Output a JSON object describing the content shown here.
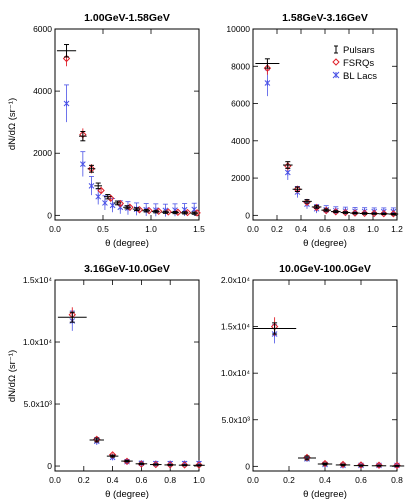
{
  "figure": {
    "y_label": "dN/dΩ (sr⁻¹)",
    "x_label": "θ (degree)"
  },
  "colors": {
    "pulsars": "#000000",
    "fsrqs": "#e0202a",
    "bllacs": "#4a52e6",
    "axes": "#000000"
  },
  "legend": {
    "placement": "top-right of panel 2",
    "entries": [
      {
        "name": "Pulsars",
        "marker": "I"
      },
      {
        "name": "FSRQs",
        "marker": "◇"
      },
      {
        "name": "BL Lacs",
        "marker": "✳"
      }
    ]
  },
  "chart_data": [
    {
      "type": "scatter",
      "title": "1.00GeV-1.58GeV",
      "xlabel": "θ (degree)",
      "ylabel": "dN/dΩ (sr⁻¹)",
      "xlim": [
        0,
        1.5
      ],
      "ylim": [
        -150,
        6000
      ],
      "x_ticks": [
        {
          "v": 0,
          "t": "0.0"
        },
        {
          "v": 0.5,
          "t": "0.5"
        },
        {
          "v": 1.0,
          "t": "1.0"
        },
        {
          "v": 1.5,
          "t": "1.5"
        }
      ],
      "y_ticks": [
        {
          "v": 0,
          "t": "0"
        },
        {
          "v": 2000,
          "t": "2000"
        },
        {
          "v": 4000,
          "t": "4000"
        },
        {
          "v": 6000,
          "t": "6000"
        }
      ],
      "series": [
        {
          "name": "Pulsars",
          "x": [
            0.12,
            0.29,
            0.38,
            0.45,
            0.55,
            0.65,
            0.75,
            0.85,
            0.95,
            1.05,
            1.15,
            1.25,
            1.35,
            1.45
          ],
          "y": [
            5300,
            2550,
            1500,
            950,
            600,
            400,
            260,
            200,
            150,
            120,
            100,
            90,
            80,
            70
          ],
          "xerr": [
            0.1,
            0.04,
            0.04,
            0.04,
            0.04,
            0.04,
            0.04,
            0.04,
            0.04,
            0.04,
            0.04,
            0.04,
            0.04,
            0.04
          ],
          "yerr": [
            200,
            150,
            110,
            90,
            70,
            60,
            50,
            45,
            40,
            40,
            35,
            35,
            35,
            35
          ]
        },
        {
          "name": "FSRQs",
          "x": [
            0.12,
            0.29,
            0.38,
            0.48,
            0.58,
            0.68,
            0.78,
            0.88,
            0.98,
            1.08,
            1.18,
            1.28,
            1.38,
            1.48
          ],
          "y": [
            5050,
            2600,
            1500,
            800,
            550,
            380,
            260,
            180,
            150,
            130,
            110,
            100,
            90,
            80
          ],
          "yerr": [
            250,
            200,
            150,
            100,
            80,
            70,
            60,
            55,
            50,
            50,
            45,
            45,
            45,
            45
          ]
        },
        {
          "name": "BL Lacs",
          "x": [
            0.12,
            0.29,
            0.38,
            0.45,
            0.52,
            0.6,
            0.68,
            0.76,
            0.85,
            0.95,
            1.05,
            1.15,
            1.25,
            1.35,
            1.45
          ],
          "y": [
            3600,
            1650,
            950,
            600,
            400,
            320,
            260,
            230,
            200,
            180,
            170,
            160,
            170,
            180,
            190
          ],
          "yerr": [
            600,
            400,
            300,
            250,
            230,
            220,
            210,
            210,
            200,
            200,
            200,
            200,
            200,
            200,
            200
          ]
        }
      ]
    },
    {
      "type": "scatter",
      "title": "1.58GeV-3.16GeV",
      "xlabel": "θ (degree)",
      "ylabel": "",
      "xlim": [
        0,
        1.2
      ],
      "ylim": [
        -250,
        10000
      ],
      "x_ticks": [
        {
          "v": 0,
          "t": "0.0"
        },
        {
          "v": 0.2,
          "t": "0.2"
        },
        {
          "v": 0.4,
          "t": "0.4"
        },
        {
          "v": 0.6,
          "t": "0.6"
        },
        {
          "v": 0.8,
          "t": "0.8"
        },
        {
          "v": 1.0,
          "t": "1.0"
        },
        {
          "v": 1.2,
          "t": "1.2"
        }
      ],
      "y_ticks": [
        {
          "v": 0,
          "t": "0"
        },
        {
          "v": 2000,
          "t": "2000"
        },
        {
          "v": 4000,
          "t": "4000"
        },
        {
          "v": 6000,
          "t": "6000"
        },
        {
          "v": 8000,
          "t": "8000"
        },
        {
          "v": 10000,
          "t": "10000"
        }
      ],
      "series": [
        {
          "name": "Pulsars",
          "x": [
            0.12,
            0.29,
            0.37,
            0.45,
            0.53,
            0.61,
            0.69,
            0.77,
            0.85,
            0.93,
            1.01,
            1.09,
            1.17
          ],
          "y": [
            8150,
            2700,
            1400,
            750,
            450,
            280,
            200,
            150,
            120,
            100,
            90,
            80,
            70
          ],
          "xerr": [
            0.1,
            0.04,
            0.04,
            0.04,
            0.04,
            0.04,
            0.04,
            0.04,
            0.04,
            0.04,
            0.04,
            0.04,
            0.04
          ],
          "yerr": [
            250,
            180,
            120,
            90,
            70,
            60,
            50,
            45,
            40,
            40,
            35,
            35,
            35
          ]
        },
        {
          "name": "FSRQs",
          "x": [
            0.12,
            0.29,
            0.37,
            0.45,
            0.53,
            0.61,
            0.69,
            0.77,
            0.85,
            0.93,
            1.01,
            1.09,
            1.17
          ],
          "y": [
            7900,
            2650,
            1400,
            700,
            420,
            260,
            190,
            150,
            120,
            110,
            100,
            90,
            80
          ],
          "yerr": [
            350,
            250,
            170,
            120,
            90,
            80,
            70,
            65,
            60,
            60,
            55,
            55,
            55
          ]
        },
        {
          "name": "BL Lacs",
          "x": [
            0.12,
            0.29,
            0.37,
            0.45,
            0.53,
            0.61,
            0.69,
            0.77,
            0.85,
            0.93,
            1.01,
            1.09,
            1.17
          ],
          "y": [
            7100,
            2300,
            1250,
            600,
            350,
            300,
            250,
            230,
            220,
            210,
            200,
            200,
            200
          ],
          "yerr": [
            700,
            400,
            300,
            250,
            230,
            220,
            210,
            210,
            200,
            200,
            200,
            200,
            200
          ]
        }
      ]
    },
    {
      "type": "scatter",
      "title": "3.16GeV-10.0GeV",
      "xlabel": "θ (degree)",
      "ylabel": "dN/dΩ (sr⁻¹)",
      "xlim": [
        0,
        1.0
      ],
      "ylim": [
        -400,
        15000
      ],
      "x_ticks": [
        {
          "v": 0,
          "t": "0.0"
        },
        {
          "v": 0.2,
          "t": "0.2"
        },
        {
          "v": 0.4,
          "t": "0.4"
        },
        {
          "v": 0.6,
          "t": "0.6"
        },
        {
          "v": 0.8,
          "t": "0.8"
        },
        {
          "v": 1.0,
          "t": "1.0"
        }
      ],
      "y_ticks": [
        {
          "v": 0,
          "t": "0"
        },
        {
          "v": 5000,
          "t": "5.0x10³"
        },
        {
          "v": 10000,
          "t": "1.0x10⁴"
        },
        {
          "v": 15000,
          "t": "1.5x10⁴"
        }
      ],
      "series": [
        {
          "name": "Pulsars",
          "x": [
            0.12,
            0.29,
            0.4,
            0.5,
            0.6,
            0.7,
            0.8,
            0.9,
            1.0
          ],
          "y": [
            12000,
            2100,
            800,
            400,
            180,
            120,
            90,
            70,
            60
          ],
          "xerr": [
            0.1,
            0.05,
            0.04,
            0.04,
            0.04,
            0.04,
            0.04,
            0.04,
            0.04
          ],
          "yerr": [
            400,
            150,
            80,
            60,
            50,
            45,
            40,
            40,
            40
          ]
        },
        {
          "name": "FSRQs",
          "x": [
            0.12,
            0.29,
            0.4,
            0.5,
            0.6,
            0.7,
            0.8,
            0.9,
            1.0
          ],
          "y": [
            12200,
            2150,
            900,
            380,
            160,
            120,
            100,
            90,
            80
          ],
          "yerr": [
            600,
            200,
            120,
            90,
            80,
            70,
            70,
            70,
            70
          ]
        },
        {
          "name": "BL Lacs",
          "x": [
            0.12,
            0.29,
            0.4,
            0.5,
            0.6,
            0.7,
            0.8,
            0.9,
            1.0
          ],
          "y": [
            11700,
            2000,
            700,
            350,
            220,
            200,
            200,
            200,
            200
          ],
          "yerr": [
            800,
            300,
            200,
            180,
            170,
            170,
            170,
            170,
            170
          ]
        }
      ]
    },
    {
      "type": "scatter",
      "title": "10.0GeV-100.0GeV",
      "xlabel": "θ (degree)",
      "ylabel": "",
      "xlim": [
        0,
        0.8
      ],
      "ylim": [
        -500,
        20000
      ],
      "x_ticks": [
        {
          "v": 0,
          "t": "0.0"
        },
        {
          "v": 0.2,
          "t": "0.2"
        },
        {
          "v": 0.4,
          "t": "0.4"
        },
        {
          "v": 0.6,
          "t": "0.6"
        },
        {
          "v": 0.8,
          "t": "0.8"
        }
      ],
      "y_ticks": [
        {
          "v": 0,
          "t": "0"
        },
        {
          "v": 5000,
          "t": "5.0x10³"
        },
        {
          "v": 10000,
          "t": "1.0x10⁴"
        },
        {
          "v": 15000,
          "t": "1.5x10⁴"
        },
        {
          "v": 20000,
          "t": "2.0x10⁴"
        }
      ],
      "series": [
        {
          "name": "Pulsars",
          "x": [
            0.12,
            0.3,
            0.4,
            0.5,
            0.6,
            0.7,
            0.8
          ],
          "y": [
            14800,
            900,
            250,
            150,
            80,
            60,
            40
          ],
          "xerr": [
            0.12,
            0.05,
            0.04,
            0.04,
            0.04,
            0.04,
            0.04
          ],
          "yerr": [
            600,
            200,
            100,
            80,
            60,
            50,
            50
          ]
        },
        {
          "name": "FSRQs",
          "x": [
            0.12,
            0.3,
            0.4,
            0.5,
            0.6,
            0.7,
            0.8
          ],
          "y": [
            15000,
            950,
            300,
            200,
            150,
            120,
            100
          ],
          "yerr": [
            1000,
            300,
            200,
            180,
            180,
            180,
            180
          ]
        },
        {
          "name": "BL Lacs",
          "x": [
            0.12,
            0.3,
            0.4,
            0.5,
            0.6,
            0.7,
            0.8
          ],
          "y": [
            14200,
            800,
            200,
            100,
            100,
            100,
            100
          ],
          "yerr": [
            1000,
            300,
            150,
            120,
            120,
            120,
            120
          ]
        }
      ]
    }
  ]
}
